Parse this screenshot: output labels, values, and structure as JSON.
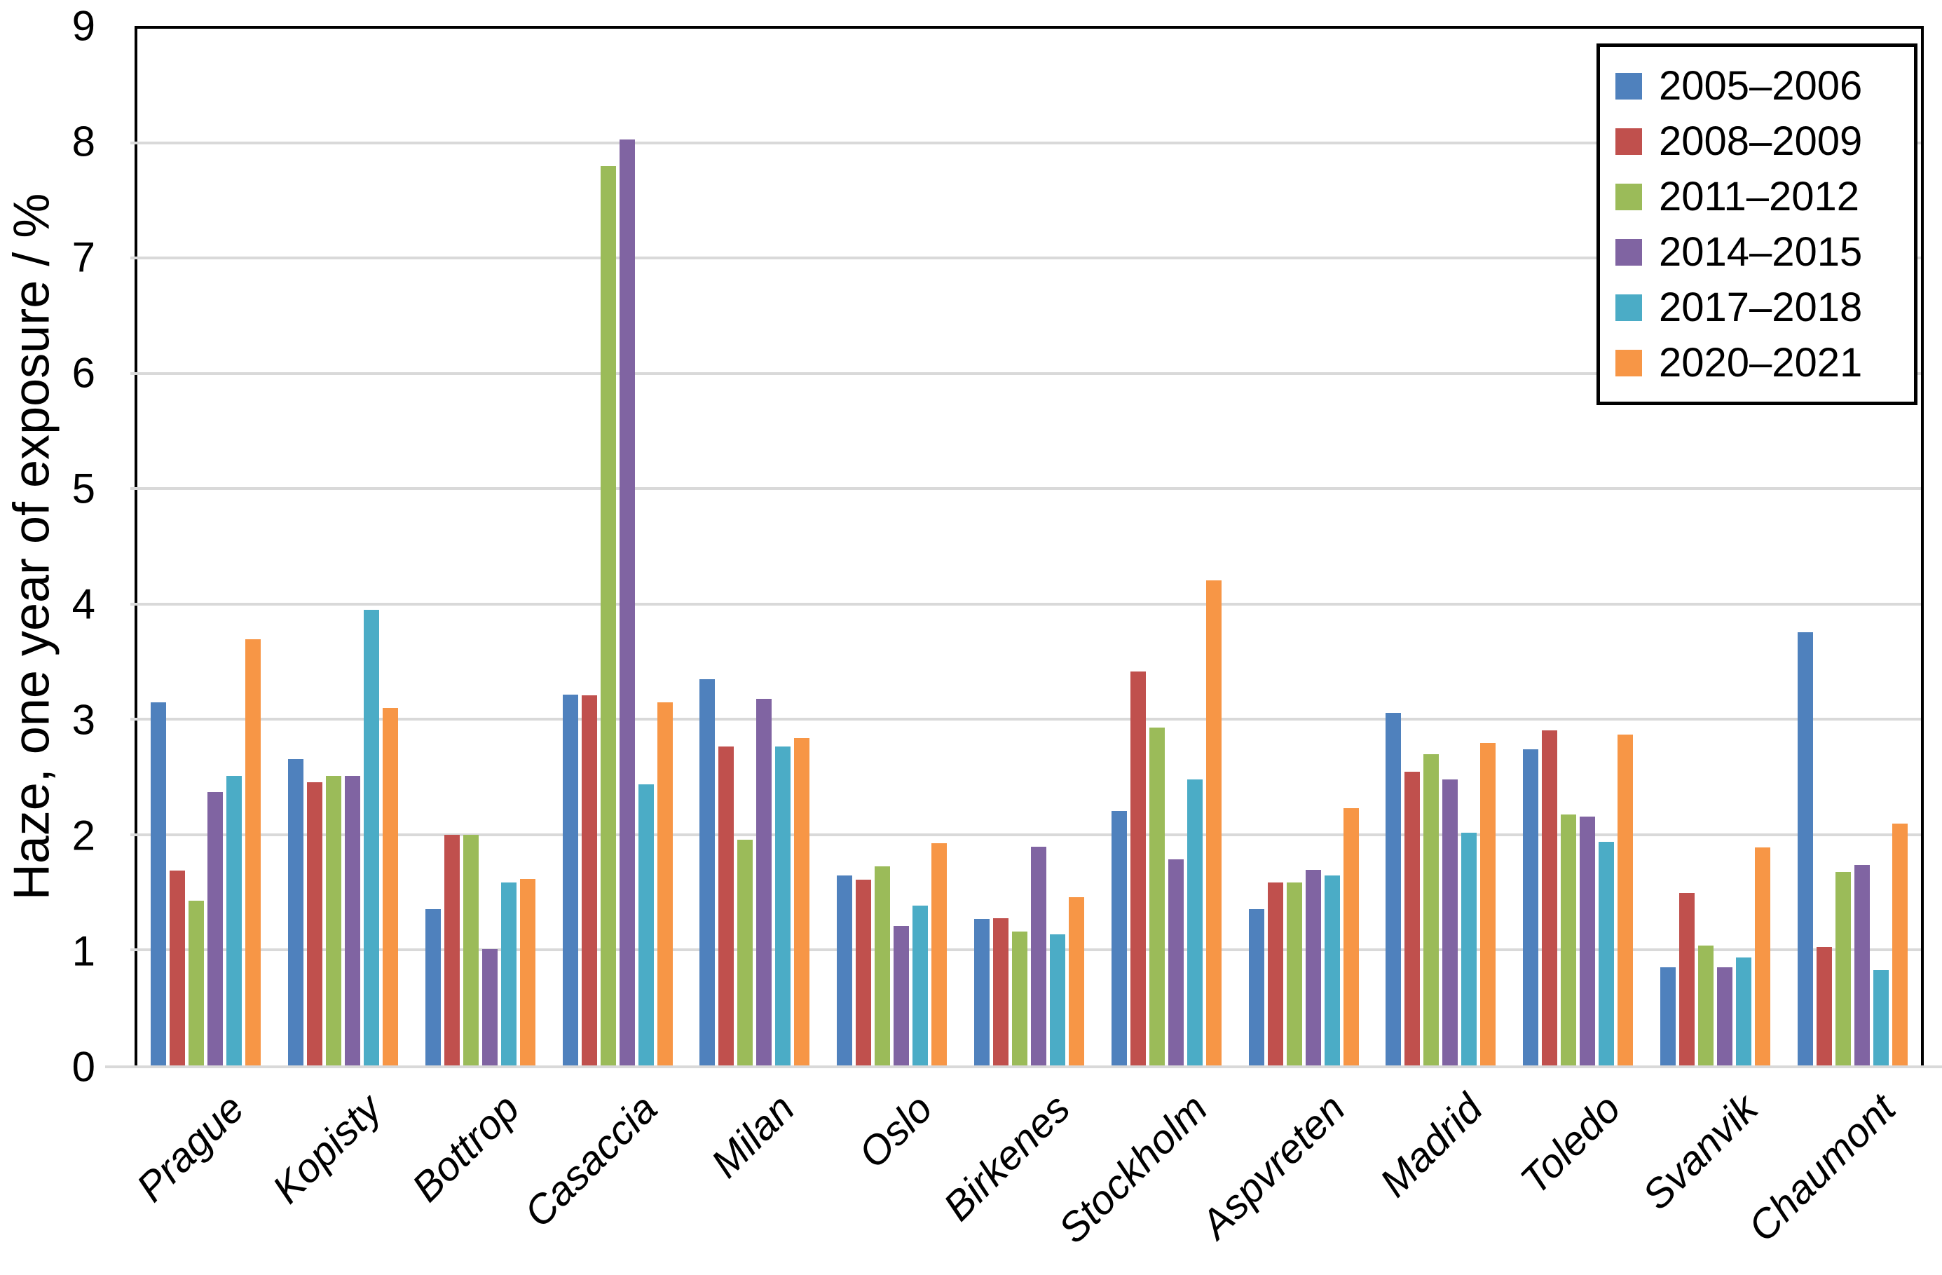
{
  "chart_data": {
    "type": "bar",
    "title": "",
    "xlabel": "",
    "ylabel": "Haze, one year of exposure / %",
    "ylim": [
      0,
      9
    ],
    "yticks": [
      "0",
      "1",
      "2",
      "3",
      "4",
      "5",
      "6",
      "7",
      "8",
      "9"
    ],
    "grid": "horizontal",
    "legend_position": "inside-top-right",
    "categories": [
      "Prague",
      "Kopisty",
      "Bottrop",
      "Casaccia",
      "Milan",
      "Oslo",
      "Birkenes",
      "Stockholm",
      "Aspvreten",
      "Madrid",
      "Toledo",
      "Svanvik",
      "Chaumont"
    ],
    "series": [
      {
        "name": "2005–2006",
        "color": "#4F81BD",
        "values": [
          3.16,
          2.67,
          1.37,
          3.23,
          3.36,
          1.66,
          1.28,
          2.22,
          1.37,
          3.07,
          2.75,
          0.86,
          3.77
        ]
      },
      {
        "name": "2008–2009",
        "color": "#C0504D",
        "values": [
          1.7,
          2.47,
          2.01,
          3.22,
          2.78,
          1.62,
          1.29,
          3.43,
          1.6,
          2.56,
          2.92,
          1.51,
          1.04
        ]
      },
      {
        "name": "2011–2012",
        "color": "#9BBB59",
        "values": [
          1.44,
          2.52,
          2.01,
          7.81,
          1.97,
          1.74,
          1.17,
          2.94,
          1.6,
          2.71,
          2.19,
          1.05,
          1.69
        ]
      },
      {
        "name": "2014–2015",
        "color": "#8064A2",
        "values": [
          2.38,
          2.52,
          1.02,
          8.04,
          3.19,
          1.22,
          1.91,
          1.8,
          1.71,
          2.49,
          2.17,
          0.86,
          1.75
        ]
      },
      {
        "name": "2017–2018",
        "color": "#4BACC6",
        "values": [
          2.52,
          3.96,
          1.6,
          2.45,
          2.78,
          1.4,
          1.15,
          2.49,
          1.66,
          2.03,
          1.95,
          0.95,
          0.84
        ]
      },
      {
        "name": "2020–2021",
        "color": "#F79646",
        "values": [
          3.71,
          3.11,
          1.63,
          3.16,
          2.85,
          1.94,
          1.47,
          4.22,
          2.24,
          2.81,
          2.88,
          1.9,
          2.11
        ]
      }
    ]
  },
  "colors": {
    "axis": "#000000",
    "gridline": "#D9D9D9",
    "background": "#FFFFFF"
  }
}
